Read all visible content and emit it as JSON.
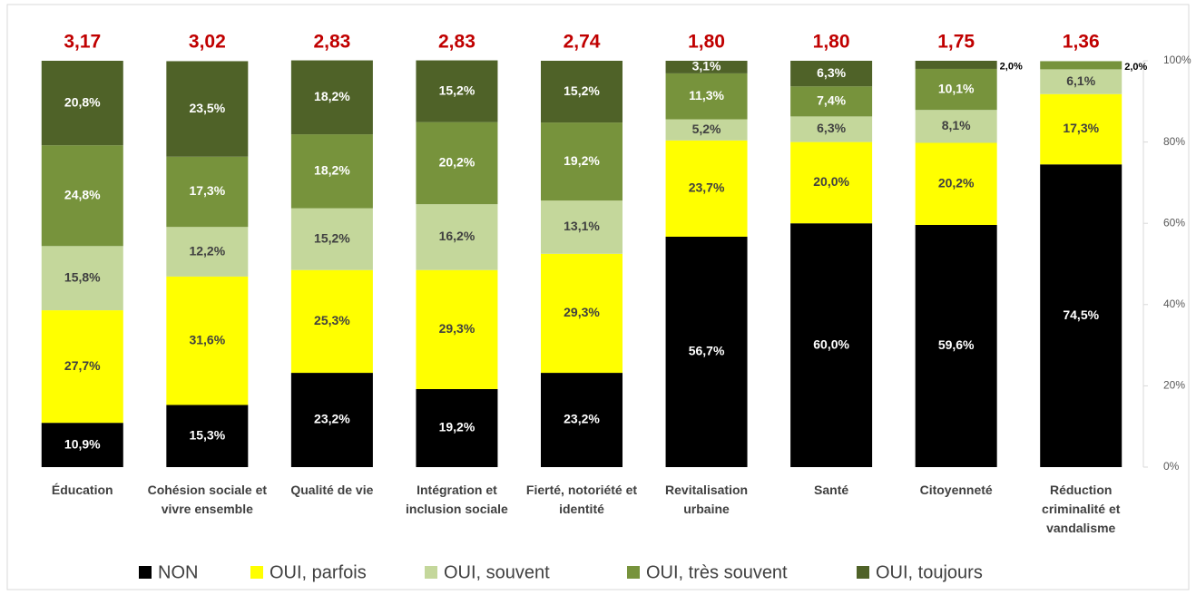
{
  "chart_data": {
    "type": "stacked_bar",
    "categories": [
      "Éducation",
      "Cohésion sociale et vivre ensemble",
      "Qualité de vie",
      "Intégration et inclusion sociale",
      "Fierté, notoriété et identité",
      "Revitalisation urbaine",
      "Santé",
      "Citoyenneté",
      "Réduction criminalité et vandalisme"
    ],
    "scores": [
      3.17,
      3.02,
      2.83,
      2.83,
      2.74,
      1.8,
      1.8,
      1.75,
      1.36
    ],
    "score_labels": [
      "3,17",
      "3,02",
      "2,83",
      "2,83",
      "2,74",
      "1,80",
      "1,80",
      "1,75",
      "1,36"
    ],
    "series": [
      {
        "name": "NON",
        "color": "#000000",
        "values": [
          10.9,
          15.3,
          23.2,
          19.2,
          23.2,
          56.7,
          60.0,
          59.6,
          74.5
        ],
        "value_labels": [
          "10,9%",
          "15,3%",
          "23,2%",
          "19,2%",
          "23,2%",
          "56,7%",
          "60,0%",
          "59,6%",
          "74,5%"
        ]
      },
      {
        "name": "OUI, parfois",
        "color": "#ffff00",
        "values": [
          27.7,
          31.6,
          25.3,
          29.3,
          29.3,
          23.7,
          20.0,
          20.2,
          17.3
        ],
        "value_labels": [
          "27,7%",
          "31,6%",
          "25,3%",
          "29,3%",
          "29,3%",
          "23,7%",
          "20,0%",
          "20,2%",
          "17,3%"
        ]
      },
      {
        "name": "OUI, souvent",
        "color": "#c4d79b",
        "values": [
          15.8,
          12.2,
          15.2,
          16.2,
          13.1,
          5.2,
          6.3,
          8.1,
          6.1
        ],
        "value_labels": [
          "15,8%",
          "12,2%",
          "15,2%",
          "16,2%",
          "13,1%",
          "5,2%",
          "6,3%",
          "8,1%",
          "6,1%"
        ]
      },
      {
        "name": "OUI, très souvent",
        "color": "#77933c",
        "values": [
          24.8,
          17.3,
          18.2,
          20.2,
          19.2,
          11.3,
          7.4,
          10.1,
          2.0
        ],
        "value_labels": [
          "24,8%",
          "17,3%",
          "18,2%",
          "20,2%",
          "19,2%",
          "11,3%",
          "7,4%",
          "10,1%",
          "2,0%"
        ]
      },
      {
        "name": "OUI, toujours",
        "color": "#4f6228",
        "values": [
          20.8,
          23.5,
          18.2,
          15.2,
          15.2,
          3.1,
          6.3,
          2.0,
          null
        ],
        "value_labels": [
          "20,8%",
          "23,5%",
          "18,2%",
          "15,2%",
          "15,2%",
          "3,1%",
          "6,3%",
          "2,0%",
          null
        ]
      }
    ],
    "ylim": [
      0,
      100
    ],
    "yticks": [
      {
        "value": 0,
        "label": "0%"
      },
      {
        "value": 20,
        "label": "20%"
      },
      {
        "value": 40,
        "label": "40%"
      },
      {
        "value": 60,
        "label": "60%"
      },
      {
        "value": 80,
        "label": "80%"
      },
      {
        "value": 100,
        "label": "100%"
      }
    ],
    "legend": "bottom"
  }
}
